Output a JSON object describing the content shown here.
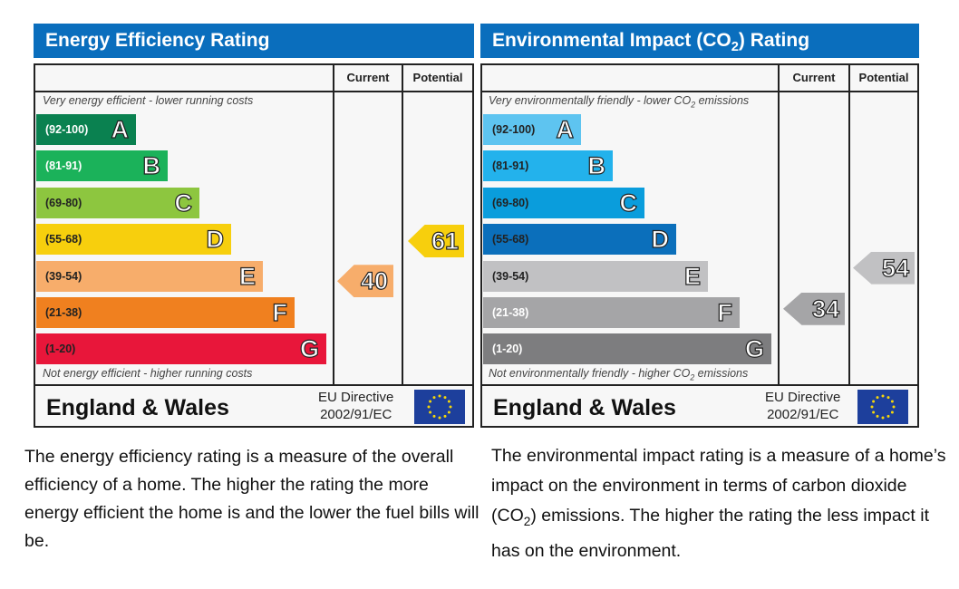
{
  "energy": {
    "title": "Energy Efficiency Rating",
    "col_current": "Current",
    "col_potential": "Potential",
    "note_top": "Very energy efficient - lower running costs",
    "note_bottom": "Not energy efficient - higher running costs",
    "bands": [
      {
        "range": "(92-100)",
        "letter": "A",
        "color": "#0a8150",
        "text_color": "#ffffff"
      },
      {
        "range": "(81-91)",
        "letter": "B",
        "color": "#1bb25a",
        "text_color": "#ffffff"
      },
      {
        "range": "(69-80)",
        "letter": "C",
        "color": "#8dc63f",
        "text_color": "#222222"
      },
      {
        "range": "(55-68)",
        "letter": "D",
        "color": "#f7cf0d",
        "text_color": "#222222"
      },
      {
        "range": "(39-54)",
        "letter": "E",
        "color": "#f7ad6b",
        "text_color": "#222222"
      },
      {
        "range": "(21-38)",
        "letter": "F",
        "color": "#f0801f",
        "text_color": "#222222"
      },
      {
        "range": "(1-20)",
        "letter": "G",
        "color": "#e8163a",
        "text_color": "#222222"
      }
    ],
    "current": {
      "value": "40",
      "band": "E",
      "color": "#f7ad6b"
    },
    "potential": {
      "value": "61",
      "band": "D",
      "color": "#f7cf0d"
    },
    "footer_country": "England & Wales",
    "footer_directive_1": "EU Directive",
    "footer_directive_2": "2002/91/EC"
  },
  "environmental": {
    "title_pre": "Environmental Impact (CO",
    "title_sub": "2",
    "title_post": ") Rating",
    "col_current": "Current",
    "col_potential": "Potential",
    "note_top_pre": "Very environmentally friendly - lower CO",
    "note_top_sub": "2",
    "note_top_post": " emissions",
    "note_bottom_pre": "Not environmentally friendly - higher CO",
    "note_bottom_sub": "2",
    "note_bottom_post": " emissions",
    "bands": [
      {
        "range": "(92-100)",
        "letter": "A",
        "color": "#5ec4f0",
        "text_color": "#222222"
      },
      {
        "range": "(81-91)",
        "letter": "B",
        "color": "#23b2ec",
        "text_color": "#222222"
      },
      {
        "range": "(69-80)",
        "letter": "C",
        "color": "#0a9ddc",
        "text_color": "#222222"
      },
      {
        "range": "(55-68)",
        "letter": "D",
        "color": "#0b6fbb",
        "text_color": "#222222"
      },
      {
        "range": "(39-54)",
        "letter": "E",
        "color": "#c1c1c3",
        "text_color": "#222222"
      },
      {
        "range": "(21-38)",
        "letter": "F",
        "color": "#a5a5a7",
        "text_color": "#ffffff"
      },
      {
        "range": "(1-20)",
        "letter": "G",
        "color": "#7d7d7f",
        "text_color": "#ffffff"
      }
    ],
    "current": {
      "value": "34",
      "band": "F",
      "color": "#a5a5a7"
    },
    "potential": {
      "value": "54",
      "band": "E",
      "color": "#c1c1c3"
    },
    "footer_country": "England & Wales",
    "footer_directive_1": "EU Directive",
    "footer_directive_2": "2002/91/EC"
  },
  "descriptions": {
    "left": "The energy efficiency rating is a measure of the overall efficiency of a home. The higher the rating the more energy efficient the home is and the lower the fuel bills will be.",
    "right_pre": "The environmental impact rating is a measure of a home’s impact on the environment in terms of carbon dioxide (CO",
    "right_sub": "2",
    "right_post": ") emissions. The higher the rating the less impact it has on the environment."
  },
  "chart_data": [
    {
      "type": "bar",
      "title": "Energy Efficiency Rating",
      "categories": [
        "A (92-100)",
        "B (81-91)",
        "C (69-80)",
        "D (55-68)",
        "E (39-54)",
        "F (21-38)",
        "G (1-20)"
      ],
      "series": [
        {
          "name": "Current",
          "values": [
            40
          ]
        },
        {
          "name": "Potential",
          "values": [
            61
          ]
        }
      ],
      "current": 40,
      "potential": 61,
      "xlabel": "",
      "ylabel": ""
    },
    {
      "type": "bar",
      "title": "Environmental Impact (CO2) Rating",
      "categories": [
        "A (92-100)",
        "B (81-91)",
        "C (69-80)",
        "D (55-68)",
        "E (39-54)",
        "F (21-38)",
        "G (1-20)"
      ],
      "series": [
        {
          "name": "Current",
          "values": [
            34
          ]
        },
        {
          "name": "Potential",
          "values": [
            54
          ]
        }
      ],
      "current": 34,
      "potential": 54,
      "xlabel": "",
      "ylabel": ""
    }
  ]
}
